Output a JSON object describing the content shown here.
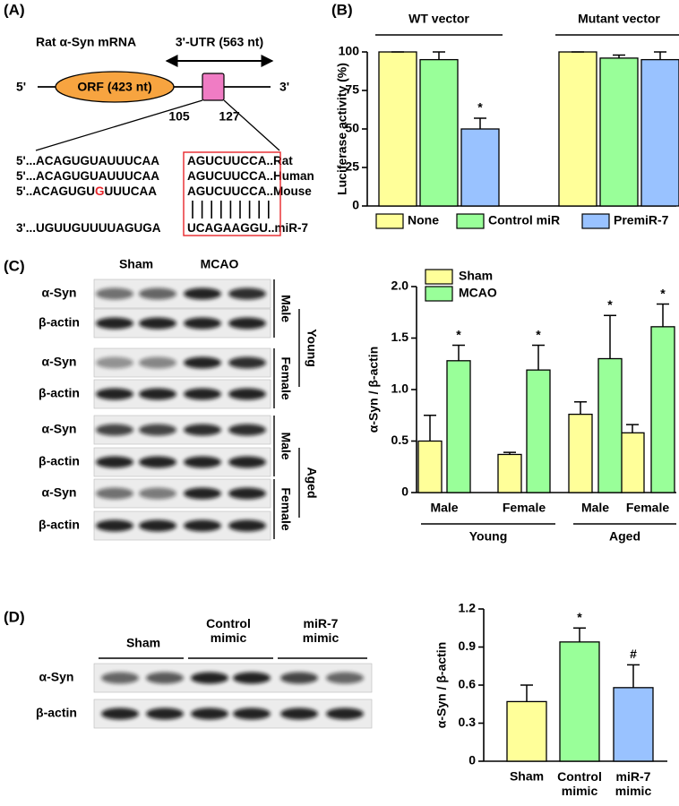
{
  "panel_labels": [
    "(A)",
    "(B)",
    "(C)",
    "(D)"
  ],
  "panel_a": {
    "mrna_label": "Rat α-Syn mRNA",
    "utr_label": "3'-UTR (563 nt)",
    "five_prime": "5'",
    "orf_label": "ORF (423 nt)",
    "three_prime": "3'",
    "site_start": "105",
    "site_end": "127",
    "rat": [
      "5'...ACAGUGUAUUUCAA",
      "AGUCUUCCA",
      "..Rat"
    ],
    "human": [
      "5'...ACAGUGUAUUUCAA",
      "AGUCUUCCA",
      "..Human"
    ],
    "mouse": [
      "5'..ACAGUGU",
      "G",
      "UUUCAA",
      "AGUCUUCCA",
      "..Mouse"
    ],
    "mir": [
      "3'...UGUUGUUUUAGUGA",
      "UCAGAAGGU",
      "..miR-7"
    ]
  },
  "blots_c": {
    "columns": [
      "Sham",
      "MCAO"
    ],
    "rows": [
      "α-Syn",
      "β-actin",
      "α-Syn",
      "β-actin",
      "α-Syn",
      "β-actin",
      "α-Syn",
      "β-actin"
    ],
    "sex": [
      "Male",
      "Female",
      "Male",
      "Female"
    ],
    "age": [
      "Young",
      "Aged"
    ]
  },
  "blots_d": {
    "columns": [
      "Sham",
      "Control\nmimic",
      "miR-7\nmimic"
    ],
    "rows": [
      "α-Syn",
      "β-actin"
    ]
  },
  "chart_data": [
    {
      "type": "bar",
      "ylabel": "Luciferase activity (%)",
      "categories": [
        "WT vector",
        "Mutant vector"
      ],
      "series": [
        {
          "name": "None",
          "color": "#ffff99",
          "values": [
            100,
            100
          ],
          "errors": [
            0,
            0
          ],
          "annotations": [
            null,
            null
          ]
        },
        {
          "name": "Control miR",
          "color": "#99ff99",
          "values": [
            95,
            96
          ],
          "errors": [
            5,
            2
          ],
          "annotations": [
            null,
            null
          ]
        },
        {
          "name": "PremiR-7",
          "color": "#99c2ff",
          "values": [
            50,
            95
          ],
          "errors": [
            7,
            5
          ],
          "annotations": [
            "*",
            null
          ]
        }
      ],
      "ylim": [
        0,
        100
      ],
      "yticks": [
        0,
        25,
        50,
        75,
        100
      ],
      "legend": "bottom"
    },
    {
      "type": "bar",
      "ylabel": "α-Syn / β-actin",
      "categories": [
        "Male",
        "Female",
        "Male",
        "Female"
      ],
      "groups": [
        "Young",
        "Aged"
      ],
      "series": [
        {
          "name": "Sham",
          "color": "#ffff99",
          "values": [
            0.5,
            0.37,
            0.76,
            0.58
          ],
          "errors": [
            0.25,
            0.02,
            0.12,
            0.08
          ],
          "annotations": [
            null,
            null,
            null,
            null
          ]
        },
        {
          "name": "MCAO",
          "color": "#99ff99",
          "values": [
            1.28,
            1.19,
            1.3,
            1.61
          ],
          "errors": [
            0.15,
            0.24,
            0.42,
            0.22
          ],
          "annotations": [
            "*",
            "*",
            "*",
            "*"
          ]
        }
      ],
      "ylim": [
        0,
        2.0
      ],
      "yticks": [
        0,
        0.5,
        {
          "value": 1.0,
          "label": "1.0"
        },
        1.5,
        {
          "value": 2.0,
          "label": "2.0"
        }
      ],
      "legend": "top-left"
    },
    {
      "type": "bar",
      "ylabel": "α-Syn / β-actin",
      "categories": [
        "Sham",
        "Control\nmimic",
        "miR-7\nmimic"
      ],
      "values": [
        0.47,
        0.94,
        0.58
      ],
      "errors": [
        0.13,
        0.11,
        0.18
      ],
      "annotations": [
        null,
        "*",
        "#"
      ],
      "colors": [
        "#ffff99",
        "#99ff99",
        "#99c2ff"
      ],
      "ylim": [
        0,
        1.2
      ],
      "yticks": [
        0,
        0.3,
        0.6,
        0.9,
        1.2
      ]
    }
  ]
}
